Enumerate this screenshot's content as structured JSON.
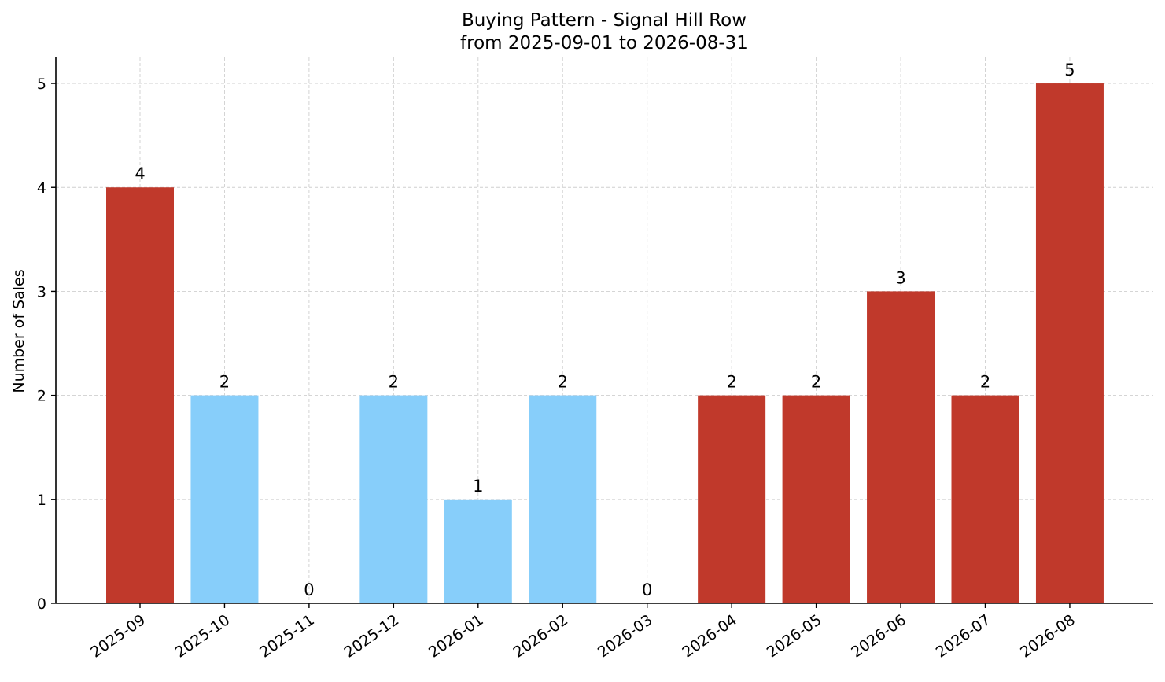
{
  "chart_data": {
    "type": "bar",
    "title": "Buying Pattern - Signal Hill Row",
    "subtitle": "from 2025-09-01 to 2026-08-31",
    "xlabel": "",
    "ylabel": "Number of Sales",
    "categories": [
      "2025-09",
      "2025-10",
      "2025-11",
      "2025-12",
      "2026-01",
      "2026-02",
      "2026-03",
      "2026-04",
      "2026-05",
      "2026-06",
      "2026-07",
      "2026-08"
    ],
    "values": [
      4,
      2,
      0,
      2,
      1,
      2,
      0,
      2,
      2,
      3,
      2,
      5
    ],
    "bar_colors": [
      "#c0392b",
      "#87cefa",
      "#87cefa",
      "#87cefa",
      "#87cefa",
      "#87cefa",
      "#c0392b",
      "#c0392b",
      "#c0392b",
      "#c0392b",
      "#c0392b",
      "#c0392b"
    ],
    "ylim": [
      0,
      5.25
    ],
    "yticks": [
      0,
      1,
      2,
      3,
      4,
      5
    ],
    "grid": true,
    "legend": "none"
  }
}
